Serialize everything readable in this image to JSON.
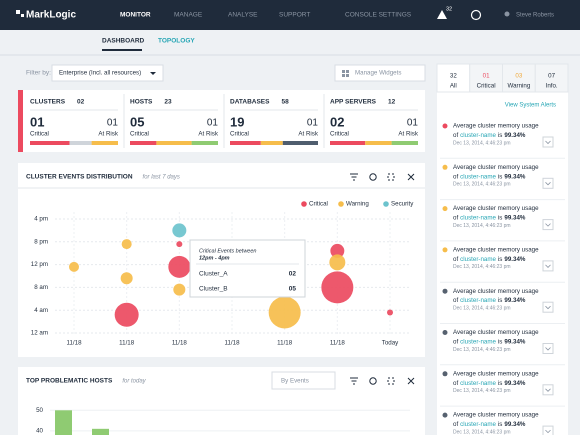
{
  "nav": {
    "logo": "MarkLogic",
    "items": [
      "MONITOR",
      "MANAGE",
      "ANALYSE",
      "SUPPORT",
      "CONSOLE SETTINGS"
    ],
    "alert_count": "32",
    "user": "Steve Roberts"
  },
  "subnav": [
    "DASHBOARD",
    "TOPOLOGY"
  ],
  "filter": {
    "label": "Filter by:",
    "value": "Enterprise (Incl. all resources)",
    "manage": "Manage Widgets"
  },
  "stats": [
    {
      "title": "CLUSTERS",
      "total": "02",
      "critical": "01",
      "critical_label": "Critical",
      "risk": "01",
      "risk_label": "At Risk"
    },
    {
      "title": "HOSTS",
      "total": "23",
      "critical": "05",
      "critical_label": "Critical",
      "risk": "01",
      "risk_label": "At Risk"
    },
    {
      "title": "DATABASES",
      "total": "58",
      "critical": "19",
      "critical_label": "Critical",
      "risk": "01",
      "risk_label": "At Risk"
    },
    {
      "title": "APP SERVERS",
      "total": "12",
      "critical": "02",
      "critical_label": "Critical",
      "risk": "01",
      "risk_label": "At Risk"
    }
  ],
  "events_chart": {
    "type": "scatter",
    "title": "CLUSTER EVENTS DISTRIBUTION",
    "subtitle": "for last 7 days",
    "grid": true,
    "series": [
      {
        "name": "Critical",
        "color": "#ec4a5f"
      },
      {
        "name": "Warning",
        "color": "#f6bd4b"
      },
      {
        "name": "Security",
        "color": "#6cc3cd"
      }
    ],
    "xlim": [
      0,
      6
    ],
    "ylim": [
      0,
      5
    ],
    "xticks": [
      {
        "value": 0,
        "label": "11/18"
      },
      {
        "value": 1,
        "label": "11/18"
      },
      {
        "value": 2,
        "label": "11/18"
      },
      {
        "value": 3,
        "label": "11/18"
      },
      {
        "value": 4,
        "label": "11/18"
      },
      {
        "value": 5,
        "label": "11/18"
      },
      {
        "value": 6,
        "label": "Today"
      }
    ],
    "yticks": [
      {
        "value": 0,
        "label": "12 am"
      },
      {
        "value": 1,
        "label": "4 am"
      },
      {
        "value": 2,
        "label": "8 am"
      },
      {
        "value": 3,
        "label": "12 pm"
      },
      {
        "value": 4,
        "label": "8 pm"
      },
      {
        "value": 5,
        "label": "4 pm"
      }
    ],
    "points": [
      {
        "x": 0,
        "y": 2.9,
        "size": 5,
        "series": 1
      },
      {
        "x": 1,
        "y": 3.9,
        "size": 5,
        "series": 1
      },
      {
        "x": 1,
        "y": 2.4,
        "size": 6,
        "series": 1
      },
      {
        "x": 1,
        "y": 0.8,
        "size": 12,
        "series": 0
      },
      {
        "x": 2,
        "y": 4.5,
        "size": 7,
        "series": 2
      },
      {
        "x": 2,
        "y": 3.9,
        "size": 3,
        "series": 0
      },
      {
        "x": 2,
        "y": 2.9,
        "size": 11,
        "series": 0
      },
      {
        "x": 2,
        "y": 1.9,
        "size": 6,
        "series": 1
      },
      {
        "x": 4,
        "y": 0.9,
        "size": 16,
        "series": 1
      },
      {
        "x": 5,
        "y": 3.6,
        "size": 7,
        "series": 0
      },
      {
        "x": 5,
        "y": 3.1,
        "size": 8,
        "series": 1
      },
      {
        "x": 5,
        "y": 2.0,
        "size": 16,
        "series": 0
      },
      {
        "x": 6,
        "y": 0.9,
        "size": 3,
        "series": 0
      }
    ],
    "tooltip": {
      "title": "Critical Events between",
      "range": "12pm - 4pm",
      "rows": [
        {
          "name": "Cluster_A",
          "value": "02"
        },
        {
          "name": "Cluster_B",
          "value": "05"
        }
      ]
    }
  },
  "hosts_chart": {
    "type": "bar",
    "title": "TOP PROBLEMATIC HOSTS",
    "subtitle": "for today",
    "search": "By Events",
    "ylim": [
      38,
      55
    ],
    "yticks": [
      50,
      40
    ],
    "values": [
      50,
      41
    ],
    "color": "#8fcb72"
  },
  "alerts": {
    "tabs": [
      {
        "count": "32",
        "label": "All"
      },
      {
        "count": "01",
        "label": "Critical"
      },
      {
        "count": "03",
        "label": "Warning"
      },
      {
        "count": "07",
        "label": "Info."
      }
    ],
    "link": "View System Alerts",
    "items": [
      {
        "line1": "Average cluster memory usage",
        "line2": "of",
        "name": "cluster-name",
        "is": "is",
        "value": "99.34%",
        "date": "Dec 13, 2014, 4:46:23 pm",
        "level": "critical"
      },
      {
        "line1": "Average cluster memory usage",
        "line2": "of",
        "name": "cluster-name",
        "is": "is",
        "value": "99.34%",
        "date": "Dec 13, 2014, 4:46:23 pm",
        "level": "warning"
      },
      {
        "line1": "Average cluster memory usage",
        "line2": "of",
        "name": "cluster-name",
        "is": "is",
        "value": "99.34%",
        "date": "Dec 13, 2014, 4:46:23 pm",
        "level": "warning"
      },
      {
        "line1": "Average cluster memory usage",
        "line2": "of",
        "name": "cluster-name",
        "is": "is",
        "value": "99.34%",
        "date": "Dec 13, 2014, 4:46:23 pm",
        "level": "warning"
      },
      {
        "line1": "Average cluster memory usage",
        "line2": "of",
        "name": "cluster-name",
        "is": "is",
        "value": "99.34%",
        "date": "Dec 13, 2014, 4:46:23 pm",
        "level": "info"
      },
      {
        "line1": "Average cluster memory usage",
        "line2": "of",
        "name": "cluster-name",
        "is": "is",
        "value": "99.34%",
        "date": "Dec 13, 2014, 4:46:23 pm",
        "level": "info"
      },
      {
        "line1": "Average cluster memory usage",
        "line2": "of",
        "name": "cluster-name",
        "is": "is",
        "value": "99.34%",
        "date": "Dec 13, 2014, 4:46:23 pm",
        "level": "info"
      },
      {
        "line1": "Average cluster memory usage",
        "line2": "of",
        "name": "cluster-name",
        "is": "is",
        "value": "99.34%",
        "date": "Dec 13, 2014, 4:46:23 pm",
        "level": "info"
      }
    ]
  }
}
